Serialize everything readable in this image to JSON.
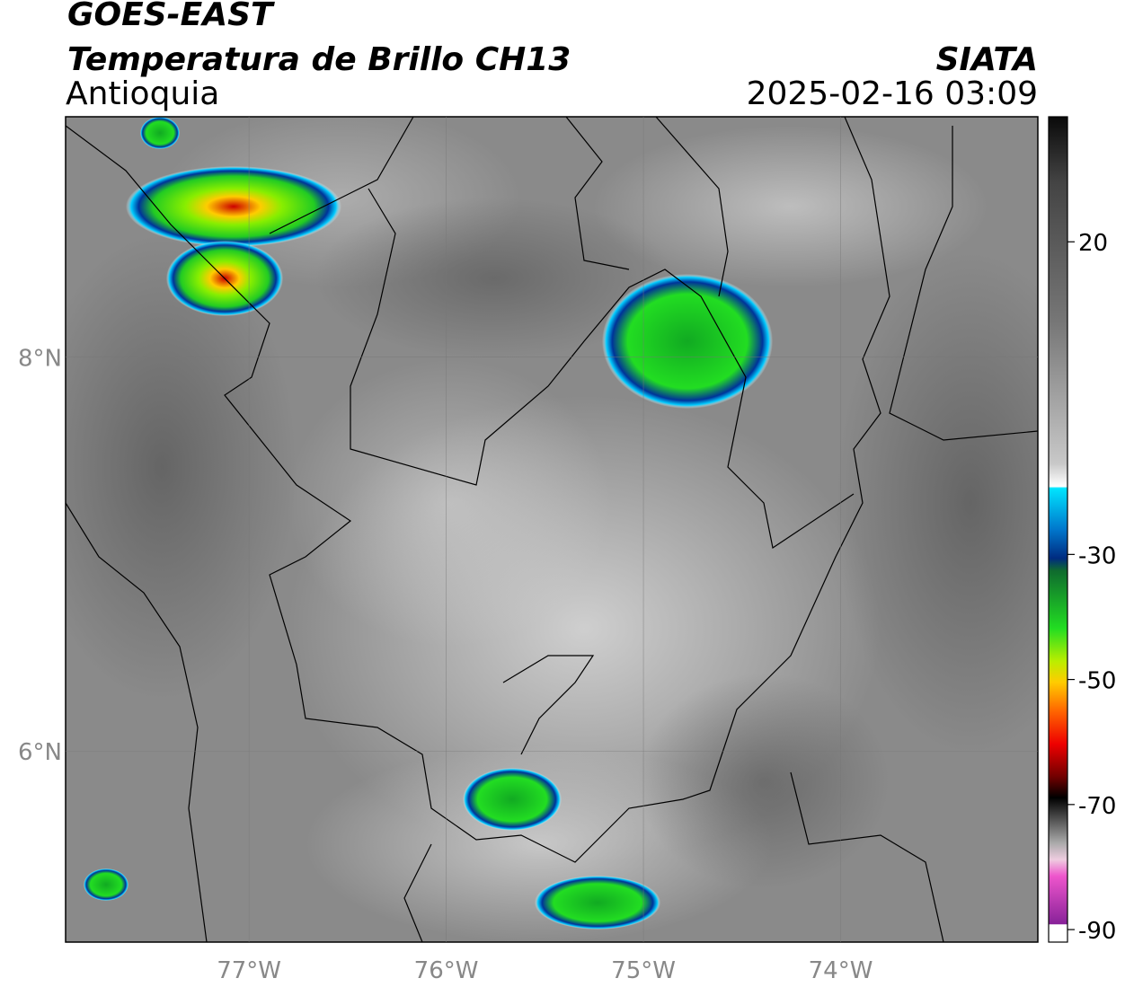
{
  "header": {
    "line1": "GOES-EAST",
    "title": "Temperatura de Brillo CH13",
    "source": "SIATA",
    "region": "Antioquia",
    "datetime": "2025-02-16 03:09"
  },
  "map": {
    "xlim": [
      -77.93,
      -73.0
    ],
    "ylim": [
      5.03,
      9.22
    ],
    "xticks": [
      {
        "value": -77,
        "label": "77°W"
      },
      {
        "value": -76,
        "label": "76°W"
      },
      {
        "value": -75,
        "label": "75°W"
      },
      {
        "value": -74,
        "label": "74°W"
      }
    ],
    "yticks": [
      {
        "value": 8,
        "label": "8°N"
      },
      {
        "value": 6,
        "label": "6°N"
      }
    ]
  },
  "colorbar": {
    "lim": [
      -92,
      40
    ],
    "ticks": [
      20,
      -30,
      -50,
      -70,
      -90
    ]
  }
}
